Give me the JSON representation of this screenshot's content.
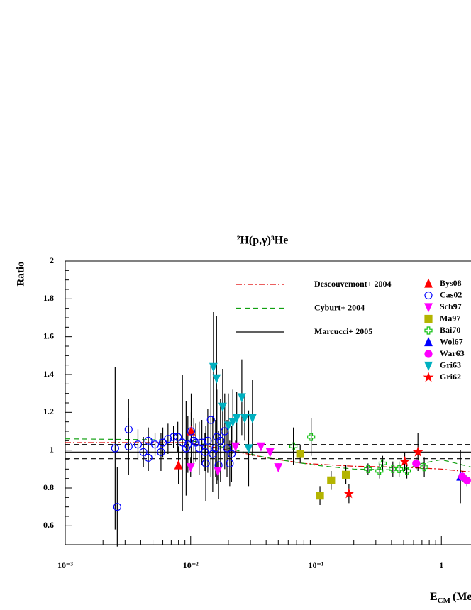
{
  "chart_data": {
    "type": "scatter",
    "title": "²H(p,γ)³He",
    "ylabel": "Ratio",
    "xlabel": "E",
    "xlabel_sub": "CM",
    "xlabel_unit": "(MeV)",
    "log_x": true,
    "xlim": [
      0.001,
      10
    ],
    "ylim": [
      0.5,
      2
    ],
    "xticks": [
      {
        "value": 0.001,
        "label": "10⁻³"
      },
      {
        "value": 0.01,
        "label": "10⁻²"
      },
      {
        "value": 0.1,
        "label": "10⁻¹"
      },
      1
    ],
    "yticks": [
      0.6,
      0.8,
      1,
      1.2,
      1.4,
      1.6,
      1.8,
      2
    ],
    "curves": [
      {
        "name": "Descouvemont+ 2004",
        "color": "#e00000",
        "style": "dashdot",
        "x": [
          0.001,
          0.005,
          0.01,
          0.02,
          0.04,
          0.08,
          0.2,
          0.5,
          1,
          2,
          10
        ],
        "values": [
          1.04,
          1.04,
          1.04,
          1.0,
          0.96,
          0.93,
          0.915,
          0.91,
          0.9,
          0.88,
          0.87
        ]
      },
      {
        "name": "Cyburt+ 2004",
        "color": "#10a010",
        "style": "dashed",
        "x": [
          0.001,
          0.005,
          0.01,
          0.02,
          0.04,
          0.1,
          0.2,
          0.5,
          0.7,
          1,
          2,
          10
        ],
        "values": [
          1.06,
          1.055,
          1.05,
          1.01,
          0.96,
          0.92,
          0.9,
          0.895,
          0.93,
          0.95,
          0.9,
          0.88
        ]
      },
      {
        "name": "Marcucci+ 2005",
        "color": "#000000",
        "style": "solid",
        "x": [
          0.001,
          10
        ],
        "values": [
          0.99,
          0.99
        ]
      },
      {
        "color": "#000000",
        "style": "dashed",
        "x": [
          0.001,
          10
        ],
        "values": [
          1.03,
          1.03
        ]
      },
      {
        "color": "#000000",
        "style": "dashed",
        "x": [
          0.001,
          10
        ],
        "values": [
          0.955,
          0.955
        ]
      }
    ],
    "series": [
      {
        "name": "Bys08",
        "color": "#ff0000",
        "marker": "triangle-up",
        "x": [
          0.008,
          0.0101
        ],
        "values": [
          0.92,
          1.1
        ],
        "errors": [
          0.1,
          0.1
        ]
      },
      {
        "name": "Cas02",
        "color": "#0000ff",
        "marker": "circle-open",
        "x": [
          0.0025,
          0.0026,
          0.0032,
          0.0032,
          0.0038,
          0.0042,
          0.0046,
          0.0046,
          0.0052,
          0.0058,
          0.006,
          0.0066,
          0.0073,
          0.0079,
          0.0086,
          0.0092,
          0.0095,
          0.0101,
          0.0106,
          0.011,
          0.0117,
          0.0123,
          0.013,
          0.0132,
          0.0137,
          0.0145,
          0.015,
          0.0158,
          0.0162,
          0.0167,
          0.0173,
          0.0187,
          0.0195,
          0.0205,
          0.0212
        ],
        "values": [
          1.01,
          0.7,
          1.11,
          1.02,
          1.03,
          0.99,
          0.96,
          1.05,
          1.03,
          0.99,
          1.04,
          1.06,
          1.07,
          1.07,
          1.04,
          1.01,
          1.03,
          1.1,
          1.05,
          1.04,
          1.01,
          1.04,
          0.99,
          0.93,
          1.05,
          1.16,
          0.98,
          1.01,
          1.07,
          0.92,
          1.05,
          1.1,
          1.01,
          0.93,
          0.98
        ],
        "errors": [
          0.43,
          0.21,
          0.16,
          0.15,
          0.08,
          0.08,
          0.07,
          0.07,
          0.06,
          0.1,
          0.08,
          0.08,
          0.06,
          0.08,
          0.36,
          0.25,
          0.15,
          0.2,
          0.12,
          0.1,
          0.14,
          0.12,
          0.1,
          0.2,
          0.17,
          0.3,
          0.2,
          0.15,
          0.25,
          0.18,
          0.22,
          0.2,
          0.15,
          0.12,
          0.15
        ]
      },
      {
        "name": "Sch97",
        "color": "#ff00ff",
        "marker": "triangle-down",
        "x": [
          0.01,
          0.0165,
          0.0228,
          0.0364,
          0.043,
          0.05
        ],
        "values": [
          0.91,
          0.89,
          1.02,
          1.02,
          0.99,
          0.91
        ],
        "errors": [
          0.05,
          0.05,
          0.03,
          0.02,
          0.02,
          0.02
        ]
      },
      {
        "name": "Ma97",
        "color": "#b4b400",
        "marker": "square",
        "x": [
          0.0748,
          0.1075,
          0.132,
          0.173
        ],
        "values": [
          0.98,
          0.76,
          0.84,
          0.87
        ],
        "errors": [
          0.05,
          0.05,
          0.05,
          0.05
        ]
      },
      {
        "name": "Bai70",
        "color": "#10c010",
        "marker": "cross-open",
        "x": [
          0.066,
          0.0915,
          0.26,
          0.32,
          0.34,
          0.41,
          0.46,
          0.53,
          0.73
        ],
        "values": [
          1.02,
          1.07,
          0.9,
          0.89,
          0.93,
          0.9,
          0.9,
          0.89,
          0.91
        ],
        "errors": [
          0.1,
          0.1,
          0.03,
          0.04,
          0.04,
          0.04,
          0.04,
          0.04,
          0.05
        ]
      },
      {
        "name": "Wol67",
        "color": "#0000ff",
        "marker": "triangle-up",
        "x": [
          1.42
        ],
        "values": [
          0.86
        ],
        "errors": [
          0.14
        ]
      },
      {
        "name": "War63",
        "color": "#ff00ff",
        "marker": "circle",
        "x": [
          0.63,
          1.47,
          1.6
        ],
        "values": [
          0.93,
          0.86,
          0.84
        ],
        "errors": [
          0.03,
          0.03,
          0.03
        ]
      },
      {
        "name": "Gri63",
        "color": "#00b0c0",
        "marker": "triangle-down",
        "x": [
          0.0152,
          0.0161,
          0.018,
          0.02,
          0.0217,
          0.0233,
          0.0256,
          0.027,
          0.029,
          0.0311
        ],
        "values": [
          1.44,
          1.38,
          1.23,
          1.13,
          1.15,
          1.17,
          1.28,
          1.17,
          1.01,
          1.17
        ],
        "errors": [
          0.29,
          0.33,
          0.2,
          0.17,
          0.17,
          0.14,
          0.2,
          0.12,
          0.2,
          0.2
        ]
      },
      {
        "name": "Gri62",
        "color": "#ff0000",
        "marker": "star",
        "x": [
          0.183,
          0.51,
          0.65
        ],
        "values": [
          0.77,
          0.94,
          0.99
        ],
        "errors": [
          0.05,
          0.05,
          0.1
        ]
      }
    ]
  }
}
